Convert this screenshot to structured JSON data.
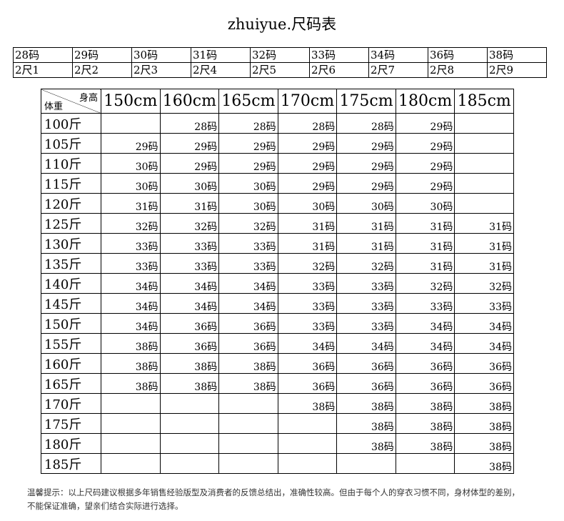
{
  "header": {
    "title": "zhuiyue.尺码表"
  },
  "size_table": {
    "sizes": [
      "28码",
      "29码",
      "30码",
      "31码",
      "32码",
      "33码",
      "34码",
      "36码",
      "38码"
    ],
    "waists": [
      "2尺1",
      "2尺2",
      "2尺3",
      "2尺4",
      "2尺5",
      "2尺6",
      "2尺7",
      "2尺8",
      "2尺9"
    ]
  },
  "main_table": {
    "corner_top": "身高",
    "corner_bottom": "体重",
    "heights": [
      "150cm",
      "160cm",
      "165cm",
      "170cm",
      "175cm",
      "180cm",
      "185cm"
    ],
    "weights": [
      "100斤",
      "105斤",
      "110斤",
      "115斤",
      "120斤",
      "125斤",
      "130斤",
      "135斤",
      "140斤",
      "145斤",
      "150斤",
      "155斤",
      "160斤",
      "165斤",
      "170斤",
      "175斤",
      "180斤",
      "185斤"
    ],
    "rows": [
      [
        null,
        "28码",
        "28码",
        "28码",
        "28码",
        "29码",
        null
      ],
      [
        "29码",
        "29码",
        "29码",
        "29码",
        "29码",
        "29码",
        null
      ],
      [
        "30码",
        "29码",
        "29码",
        "29码",
        "29码",
        "29码",
        null
      ],
      [
        "30码",
        "30码",
        "30码",
        "29码",
        "29码",
        "29码",
        null
      ],
      [
        "31码",
        "31码",
        "30码",
        "30码",
        "30码",
        "30码",
        null
      ],
      [
        "32码",
        "32码",
        "32码",
        "31码",
        "31码",
        "31码",
        "31码"
      ],
      [
        "33码",
        "33码",
        "33码",
        "31码",
        "31码",
        "31码",
        "31码"
      ],
      [
        "33码",
        "33码",
        "33码",
        "32码",
        "32码",
        "31码",
        "31码"
      ],
      [
        "34码",
        "34码",
        "34码",
        "33码",
        "33码",
        "32码",
        "32码"
      ],
      [
        "34码",
        "34码",
        "34码",
        "33码",
        "33码",
        "33码",
        "33码"
      ],
      [
        "34码",
        "36码",
        "36码",
        "33码",
        "33码",
        "34码",
        "34码"
      ],
      [
        "38码",
        "36码",
        "36码",
        "34码",
        "34码",
        "34码",
        "34码"
      ],
      [
        "38码",
        "38码",
        "38码",
        "36码",
        "36码",
        "36码",
        "36码"
      ],
      [
        "38码",
        "38码",
        "38码",
        "36码",
        "36码",
        "36码",
        "36码"
      ],
      [
        null,
        null,
        null,
        "38码",
        "38码",
        "38码",
        "38码"
      ],
      [
        null,
        null,
        null,
        null,
        "38码",
        "38码",
        "38码"
      ],
      [
        null,
        null,
        null,
        null,
        "38码",
        "38码",
        "38码"
      ],
      [
        null,
        null,
        null,
        null,
        null,
        null,
        "38码"
      ]
    ]
  },
  "note": [
    "温馨提示：以上尺码建议根据多年销售经验版型及消费者的反馈总结出，准确性较高。但由于每个人的穿衣习惯不同，身材体型的差别，",
    "不能保证准确，望亲们结合实际进行选择。"
  ]
}
